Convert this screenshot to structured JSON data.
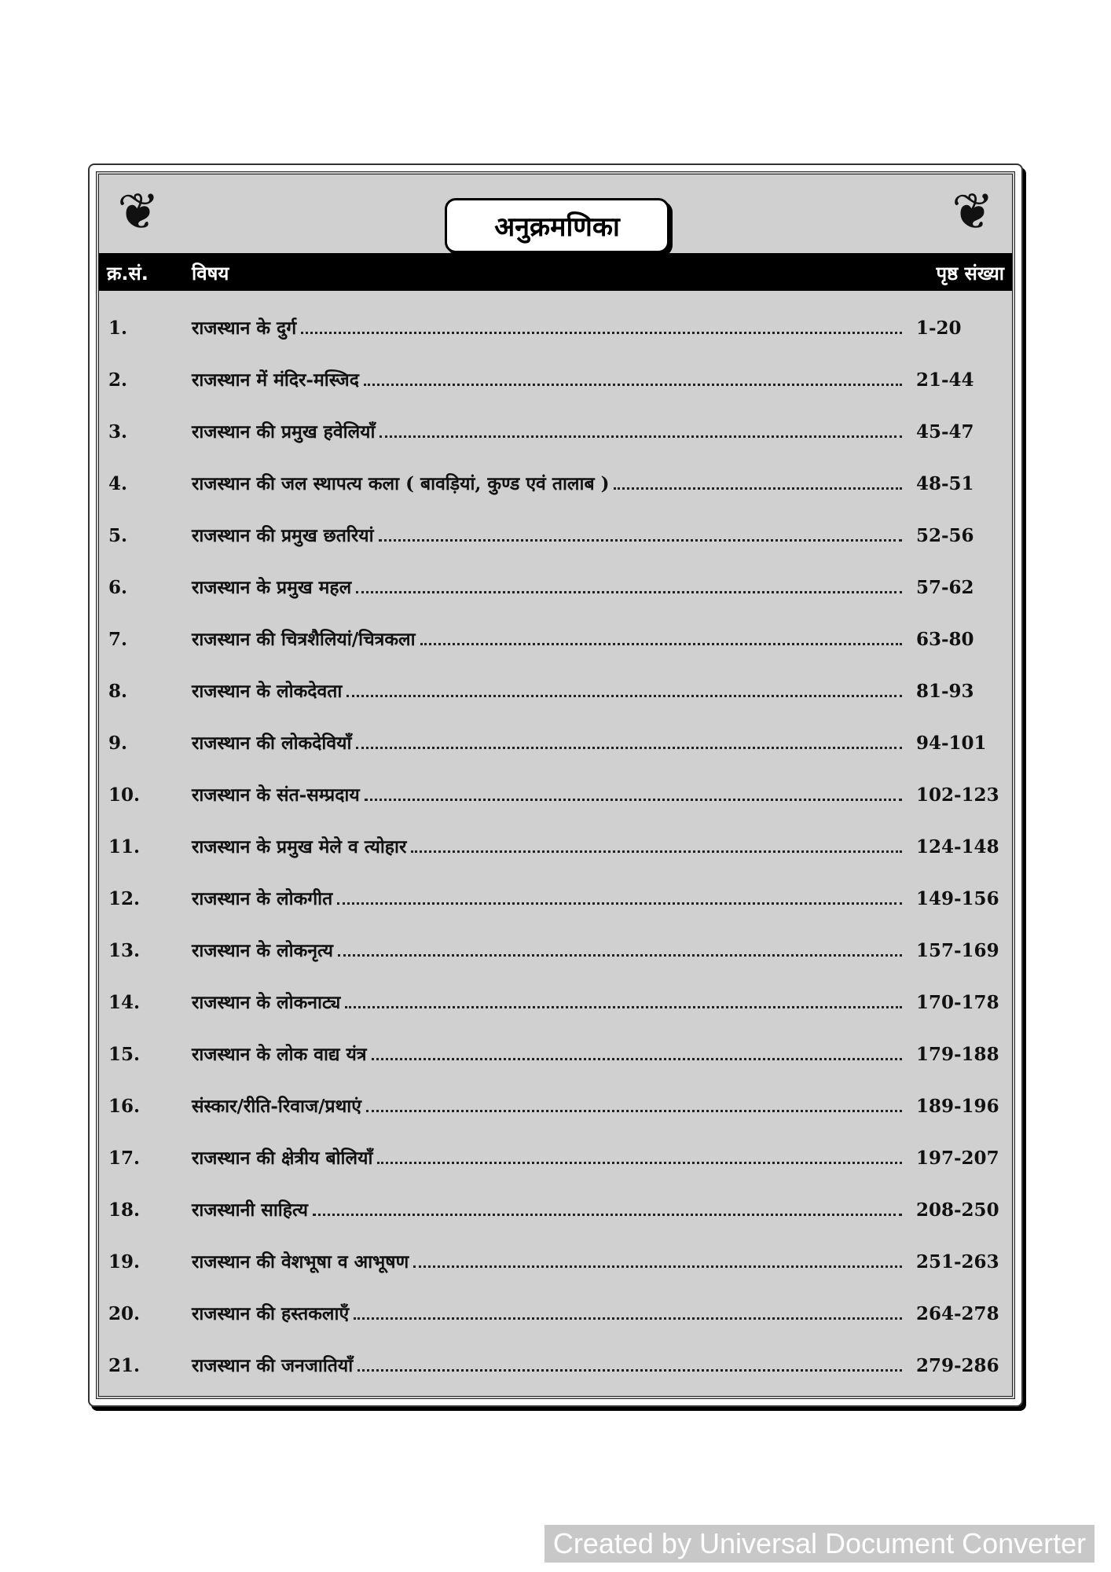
{
  "title": "अनुक्रमणिका",
  "header": {
    "col_no": "क्र.सं.",
    "col_subject": "विषय",
    "col_page": "पृष्ठ संख्या"
  },
  "rows": [
    {
      "no": "1.",
      "subject": "राजस्थान के दुर्ग",
      "pages": "1-20"
    },
    {
      "no": "2.",
      "subject": "राजस्थान में मंदिर-मस्जिद",
      "pages": "21-44"
    },
    {
      "no": "3.",
      "subject": "राजस्थान की प्रमुख हवेलियाँ",
      "pages": "45-47"
    },
    {
      "no": "4.",
      "subject": "राजस्थान की जल स्थापत्य कला ( बावड़ियां, कुण्ड एवं तालाब )",
      "pages": "48-51"
    },
    {
      "no": "5.",
      "subject": "राजस्थान की प्रमुख छतरियां",
      "pages": "52-56"
    },
    {
      "no": "6.",
      "subject": "राजस्थान के प्रमुख महल",
      "pages": "57-62"
    },
    {
      "no": "7.",
      "subject": "राजस्थान की चित्रशैलियां/चित्रकला",
      "pages": "63-80"
    },
    {
      "no": "8.",
      "subject": "राजस्थान के लोकदेवता",
      "pages": "81-93"
    },
    {
      "no": "9.",
      "subject": "राजस्थान की लोकदेवियाँ",
      "pages": "94-101"
    },
    {
      "no": "10.",
      "subject": "राजस्थान के संत-सम्प्रदाय",
      "pages": "102-123"
    },
    {
      "no": "11.",
      "subject": "राजस्थान के प्रमुख मेले व त्योहार",
      "pages": "124-148"
    },
    {
      "no": "12.",
      "subject": "राजस्थान के लोकगीत",
      "pages": "149-156"
    },
    {
      "no": "13.",
      "subject": "राजस्थान के लोकनृत्य",
      "pages": "157-169"
    },
    {
      "no": "14.",
      "subject": "राजस्थान के लोकनाट्य",
      "pages": "170-178"
    },
    {
      "no": "15.",
      "subject": "राजस्थान के लोक वाद्य यंत्र",
      "pages": "179-188"
    },
    {
      "no": "16.",
      "subject": "संस्कार/रीति-रिवाज/प्रथाएं",
      "pages": "189-196"
    },
    {
      "no": "17.",
      "subject": "राजस्थान की क्षेत्रीय बोलियाँ",
      "pages": "197-207"
    },
    {
      "no": "18.",
      "subject": "राजस्थानी साहित्य",
      "pages": "208-250"
    },
    {
      "no": "19.",
      "subject": "राजस्थान की वेशभूषा व आभूषण",
      "pages": "251-263"
    },
    {
      "no": "20.",
      "subject": "राजस्थान की हस्तकलाएँ",
      "pages": "264-278"
    },
    {
      "no": "21.",
      "subject": "राजस्थान की जनजातियाँ",
      "pages": "279-286"
    }
  ],
  "watermark": "Created by Universal Document Converter",
  "icons": {
    "corner": "floral-ornament-icon"
  }
}
